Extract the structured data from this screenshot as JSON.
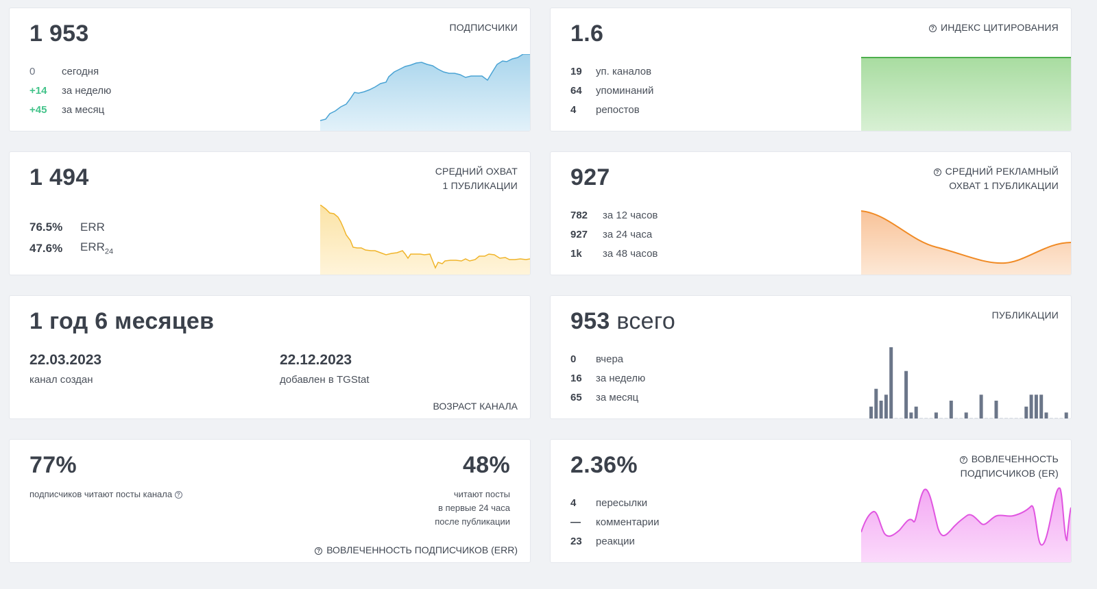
{
  "subscribers": {
    "value": "1 953",
    "label": "ПОДПИСЧИКИ",
    "rows": [
      {
        "num": "0",
        "text": "сегодня"
      },
      {
        "num": "+14",
        "text": "за неделю"
      },
      {
        "num": "+45",
        "text": "за месяц"
      }
    ],
    "color": "#5aaed8"
  },
  "citation": {
    "value": "1.6",
    "label": "ИНДЕКС ЦИТИРОВАНИЯ",
    "rows": [
      {
        "num": "19",
        "text": "уп. каналов"
      },
      {
        "num": "64",
        "text": "упоминаний"
      },
      {
        "num": "4",
        "text": "репостов"
      }
    ],
    "color": "#5cb85c"
  },
  "avg_reach": {
    "value": "1 494",
    "label_line1": "СРЕДНИЙ ОХВАТ",
    "label_line2": "1 ПУБЛИКАЦИИ",
    "err": {
      "num": "76.5%",
      "text": "ERR"
    },
    "err24": {
      "num": "47.6%",
      "text": "ERR",
      "sub": "24"
    },
    "color": "#f0b429"
  },
  "ad_reach": {
    "value": "927",
    "label_line1": "СРЕДНИЙ РЕКЛАМНЫЙ",
    "label_line2": "ОХВАТ 1 ПУБЛИКАЦИИ",
    "rows": [
      {
        "num": "782",
        "text": "за 12 часов"
      },
      {
        "num": "927",
        "text": "за 24 часа"
      },
      {
        "num": "1k",
        "text": "за 48 часов"
      }
    ],
    "color": "#f08a24"
  },
  "age": {
    "value": "1 год 6 месяцев",
    "created_date": "22.03.2023",
    "created_label": "канал создан",
    "added_date": "22.12.2023",
    "added_label": "добавлен в TGStat",
    "label": "ВОЗРАСТ КАНАЛА"
  },
  "publications": {
    "value": "953",
    "value_suffix": "всего",
    "label": "ПУБЛИКАЦИИ",
    "rows": [
      {
        "num": "0",
        "text": "вчера"
      },
      {
        "num": "16",
        "text": "за неделю"
      },
      {
        "num": "65",
        "text": "за месяц"
      }
    ],
    "bars": [
      2,
      5,
      3,
      4,
      12,
      0,
      0,
      8,
      1,
      2,
      0,
      0,
      0,
      1,
      0,
      0,
      3,
      0,
      0,
      1,
      0,
      0,
      4,
      0,
      0,
      3,
      0,
      0,
      0,
      0,
      0,
      2,
      4,
      4,
      4,
      1,
      0,
      0,
      0,
      1
    ],
    "color": "#6b7689"
  },
  "err_engagement": {
    "value_left": "77%",
    "left_text": "подписчиков читают посты канала",
    "value_right": "48%",
    "right_line1": "читают посты",
    "right_line2": "в первые 24 часа",
    "right_line3": "после публикации",
    "label": "ВОВЛЕЧЕННОСТЬ ПОДПИСЧИКОВ (ERR)"
  },
  "er_engagement": {
    "value": "2.36%",
    "label_line1": "ВОВЛЕЧЕННОСТЬ",
    "label_line2": "ПОДПИСЧИКОВ (ER)",
    "rows": [
      {
        "num": "4",
        "text": "пересылки"
      },
      {
        "num": "—",
        "text": "комментарии"
      },
      {
        "num": "23",
        "text": "реакции"
      }
    ],
    "color": "#e055e0"
  }
}
